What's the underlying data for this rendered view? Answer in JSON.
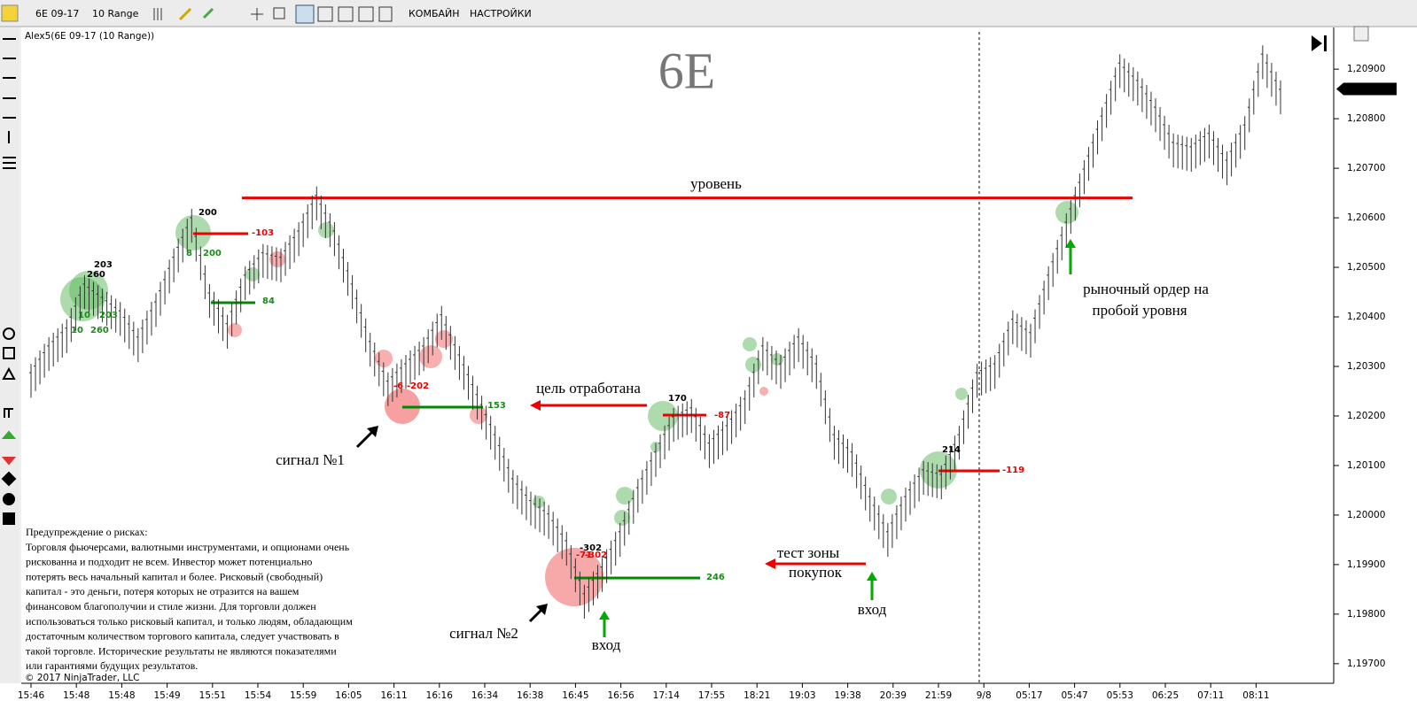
{
  "toolbar": {
    "instrument": "6E 09-17",
    "period": "10 Range",
    "buttons": [
      "КОМБАЙН",
      "НАСТРОЙКИ"
    ]
  },
  "chart_data": {
    "type": "range-bars",
    "indicator_label": "Alex5(6E 09-17 (10 Range))",
    "title": "6E",
    "ylim": [
      1.19664,
      1.20986
    ],
    "yticks": [
      {
        "value": 1.209,
        "label": "1,20900"
      },
      {
        "value": 1.208,
        "label": "1,20800"
      },
      {
        "value": 1.207,
        "label": "1,20700"
      },
      {
        "value": 1.206,
        "label": "1,20600"
      },
      {
        "value": 1.205,
        "label": "1,20500"
      },
      {
        "value": 1.204,
        "label": "1,20400"
      },
      {
        "value": 1.203,
        "label": "1,20300"
      },
      {
        "value": 1.202,
        "label": "1,20200"
      },
      {
        "value": 1.201,
        "label": "1,20100"
      },
      {
        "value": 1.2,
        "label": "1,20000"
      },
      {
        "value": 1.199,
        "label": "1,19900"
      },
      {
        "value": 1.198,
        "label": "1,19800"
      },
      {
        "value": 1.197,
        "label": "1,19700"
      }
    ],
    "last_price": {
      "value": 1.2086,
      "label": "1,20860"
    },
    "level": 1.2064,
    "time_labels": [
      "15:46",
      "15:48",
      "15:48",
      "15:49",
      "15:51",
      "15:54",
      "15:59",
      "16:05",
      "16:11",
      "16:16",
      "16:34",
      "16:38",
      "16:45",
      "16:56",
      "17:14",
      "17:55",
      "18:21",
      "19:03",
      "19:38",
      "20:39",
      "21:59",
      "9/8",
      "05:17",
      "05:47",
      "05:53",
      "06:25",
      "07:11",
      "08:11"
    ],
    "high": [
      1.20298,
      1.20352,
      1.20388,
      1.20477,
      1.2045,
      1.20423,
      1.2037,
      1.20441,
      1.20531,
      1.20611,
      1.20459,
      1.20397,
      1.20495,
      1.2054,
      1.20531,
      1.20584,
      1.20656,
      1.20584,
      1.20477,
      1.20361,
      1.20281,
      1.20316,
      1.20352,
      1.20415,
      1.20334,
      1.20254,
      1.20173,
      1.20084,
      1.2004,
      1.20013,
      1.19959,
      1.19852,
      1.19906,
      1.19977,
      1.20066,
      1.20138,
      1.20209,
      1.20227,
      1.20156,
      1.20191,
      1.20245,
      1.20352,
      1.20316,
      1.2037,
      1.20316,
      1.20173,
      1.20138,
      1.20048,
      1.19977,
      1.20048,
      1.20102,
      1.20093,
      1.20173,
      1.20298,
      1.20316,
      1.20406,
      1.20379,
      1.20495,
      1.20602,
      1.20709,
      1.20816,
      1.20923,
      1.20888,
      1.20834,
      1.20763,
      1.20754,
      1.20781,
      1.20727,
      1.20798,
      1.20941,
      1.2087
    ],
    "low": [
      1.20244,
      1.20298,
      1.20334,
      1.20423,
      1.20396,
      1.20369,
      1.20316,
      1.20387,
      1.20477,
      1.20557,
      1.20405,
      1.20343,
      1.20441,
      1.20486,
      1.20477,
      1.2053,
      1.20602,
      1.2053,
      1.20423,
      1.20307,
      1.20227,
      1.20262,
      1.20298,
      1.20361,
      1.2028,
      1.202,
      1.20119,
      1.2003,
      1.19986,
      1.19959,
      1.19905,
      1.19798,
      1.19852,
      1.19923,
      1.20012,
      1.20084,
      1.20155,
      1.20173,
      1.20102,
      1.20137,
      1.20191,
      1.20298,
      1.20262,
      1.20316,
      1.20262,
      1.20119,
      1.20084,
      1.19994,
      1.19923,
      1.19994,
      1.20048,
      1.20039,
      1.20119,
      1.20244,
      1.20262,
      1.20352,
      1.20325,
      1.20441,
      1.20548,
      1.20655,
      1.20762,
      1.20869,
      1.20834,
      1.2078,
      1.20709,
      1.207,
      1.20727,
      1.20673,
      1.20744,
      1.20887,
      1.20816
    ],
    "annotations": [
      "уровень",
      "цель  отработана",
      "сигнал  №1",
      "сигнал  №2",
      "вход",
      "вход",
      "тест зоны",
      "покупок",
      "рыночный ордер на",
      "пробой уровня"
    ],
    "number_labels": [
      200,
      -103,
      8,
      200,
      203,
      260,
      10,
      203,
      10,
      260,
      84,
      -6,
      -202,
      153,
      170,
      -87,
      -302,
      -71,
      -302,
      246,
      214,
      -119
    ],
    "disclaimer": {
      "heading": "Предупреждение о рисках:",
      "lines": [
        "Торговля фьючерсами, валютными инструментами, и опционами очень",
        "рискованна и подходит не всем. Инвестор может потенциально",
        "потерять весь начальный капитал и более. Рисковый (свободный)",
        "капитал - это деньги, потеря которых не отразится на вашем",
        "финансовом благополучии и стиле жизни. Для торговли должен",
        "использоваться только рисковый капитал, и только людям, обладающим",
        "достаточным количеством торгового капитала, следует участвовать в",
        "такой торговле. Исторические результаты не являются показателями",
        "или гарантиями будущих результатов."
      ]
    },
    "copyright": "© 2017 NinjaTrader, LLC"
  }
}
